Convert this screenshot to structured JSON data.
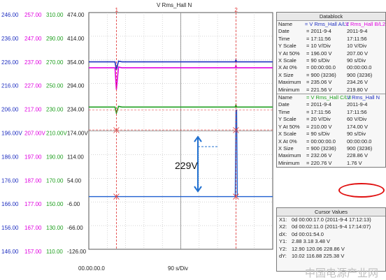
{
  "chart_data": {
    "type": "line",
    "title": "V Rms_Hall N",
    "x_axis": {
      "start_label": "00.00.00.0",
      "div_label": "90 s/Div"
    },
    "y_scales": [
      {
        "color": "#2030c0",
        "ticks": [
          "246.00",
          "236.00",
          "226.00",
          "216.00",
          "206.00",
          "196.00V",
          "186.00",
          "176.00",
          "166.00",
          "156.00",
          "146.00"
        ]
      },
      {
        "color": "#e000e0",
        "ticks": [
          "257.00",
          "247.00",
          "237.00",
          "227.00",
          "217.00",
          "207.00V",
          "197.00",
          "187.00",
          "177.00",
          "167.00",
          "157.00"
        ]
      },
      {
        "color": "#20a020",
        "ticks": [
          "310.00",
          "290.00",
          "270.00",
          "250.00",
          "230.00",
          "210.00V",
          "190.00",
          "170.00",
          "150.00",
          "130.00",
          "110.00"
        ]
      },
      {
        "color": "#222222",
        "ticks": [
          "474.00",
          "414.00",
          "354.00",
          "294.00",
          "234.00",
          "174.00V",
          "114.00",
          "54.00",
          "-6.00",
          "-66.00",
          "-126.00"
        ]
      }
    ],
    "cursors": [
      {
        "label": "1",
        "x_div": 1.5
      },
      {
        "label": "2",
        "x_div": 8.0
      }
    ],
    "series": [
      {
        "name": "V Rms_Hall A/L1",
        "color": "#2030c0",
        "base": 226.5,
        "dip": 223.0
      },
      {
        "name": "V Rms_Hall B/L2",
        "color": "#e000e0",
        "base": 234.9,
        "dip": 225.3
      },
      {
        "name": "V Rms_Hall C/L3",
        "color": "#20a020",
        "base": 231.3,
        "dip": 226.0
      },
      {
        "name": "V Rms_Hall N",
        "color": "#1f5fd0",
        "base": 1.76,
        "spike": 228.86
      }
    ],
    "annotation": "229V"
  },
  "datablock": {
    "title": "Datablock",
    "top": {
      "rows": [
        {
          "k": "Name",
          "v1": "= V Rms_Hall A/L1",
          "v2": "V Rms_Hall B/L2"
        },
        {
          "k": "Date",
          "v1": "= 2011-9-4",
          "v2": "2011-9-4"
        },
        {
          "k": "Time",
          "v1": "= 17:11:56",
          "v2": "17:11:56"
        },
        {
          "k": "Y Scale",
          "v1": "= 10  V/Div",
          "v2": "10  V/Div"
        },
        {
          "k": "Y At 50%",
          "v1": "= 196.00 V",
          "v2": "207.00 V"
        },
        {
          "k": "X Scale",
          "v1": "= 90  s/Div",
          "v2": "90  s/Div"
        },
        {
          "k": "X At 0%",
          "v1": "= 00:00:00.0",
          "v2": "00:00:00.0"
        },
        {
          "k": "X Size",
          "v1": "= 900 (3236)",
          "v2": "900 (3236)"
        },
        {
          "k": "Maximum",
          "v1": "= 235.06 V",
          "v2": "234.26 V"
        },
        {
          "k": "Minimum",
          "v1": "= 221.56 V",
          "v2": "219.80 V"
        }
      ]
    },
    "bottom": {
      "rows": [
        {
          "k": "Name",
          "v1": "= V Rms_Hall C/L3",
          "v2": "V Rms_Hall N"
        },
        {
          "k": "Date",
          "v1": "= 2011-9-4",
          "v2": "2011-9-4"
        },
        {
          "k": "Time",
          "v1": "= 17:11:56",
          "v2": "17:11:56"
        },
        {
          "k": "Y Scale",
          "v1": "= 20  V/Div",
          "v2": "60  V/Div"
        },
        {
          "k": "Y At 50%",
          "v1": "= 210.00 V",
          "v2": "174.00 V"
        },
        {
          "k": "X Scale",
          "v1": "= 90  s/Div",
          "v2": "90  s/Div"
        },
        {
          "k": "X At 0%",
          "v1": "= 00:00:00.0",
          "v2": "00:00:00.0"
        },
        {
          "k": "X Size",
          "v1": "= 900 (3236)",
          "v2": "900 (3236)"
        },
        {
          "k": "Maximum",
          "v1": "= 232.06 V",
          "v2": "228.86 V"
        },
        {
          "k": "Minimum",
          "v1": "= 220.76 V",
          "v2": "1.76 V"
        }
      ]
    }
  },
  "cursor_values": {
    "title": "Cursor Values",
    "rows": [
      {
        "k": "X1:",
        "v": "0d 00:00:17.0 (2011-9-4 17:12:13)"
      },
      {
        "k": "X2:",
        "v": "0d 00:02:11.0 (2011-9-4 17:14:07)"
      },
      {
        "k": "dX:",
        "v": "0d 00:01:54.0"
      },
      {
        "k": "Y1:",
        "v": "2.88    3.18    3.48 V"
      },
      {
        "k": "Y2:",
        "v": "12.90   120.06   228.86 V"
      },
      {
        "k": "dY:",
        "v": "10.02   116.88   225.38 V"
      }
    ]
  },
  "watermark": "中国电源产业网"
}
